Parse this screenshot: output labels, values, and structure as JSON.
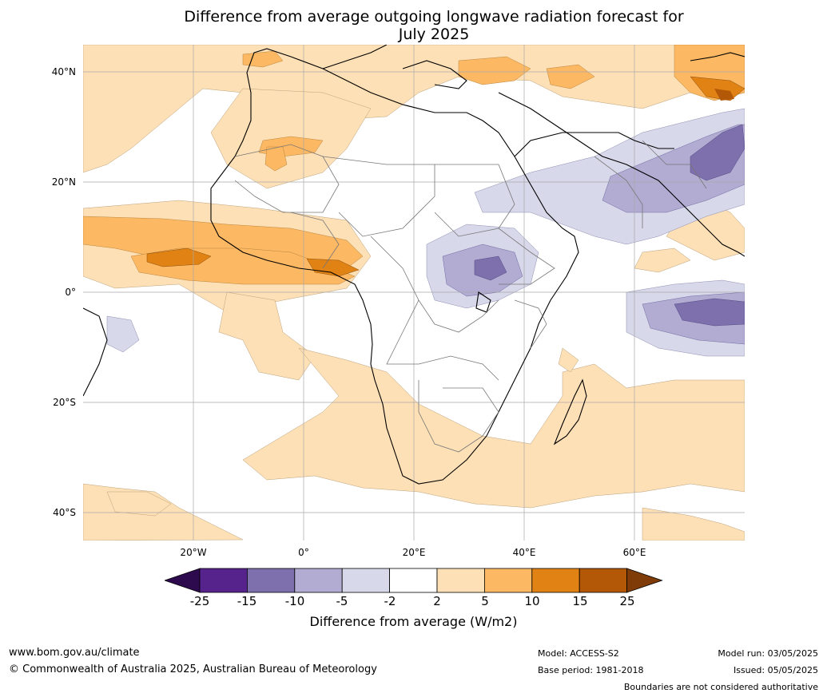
{
  "title_line1": "Difference from average outgoing longwave radiation forecast for",
  "title_line2": "July 2025",
  "lat_labels": [
    "40°N",
    "20°N",
    "0°",
    "20°S",
    "40°S"
  ],
  "lon_labels": [
    "20°W",
    "0°",
    "20°E",
    "40°E",
    "60°E"
  ],
  "legend": {
    "title": "Difference from average (W/m2)",
    "ticks": [
      "-25",
      "-15",
      "-10",
      "-5",
      "-2",
      "2",
      "5",
      "10",
      "15",
      "25"
    ],
    "colors": {
      "below_min": "#2d0a4e",
      "bins": [
        "#56228b",
        "#7e6fad",
        "#b2abd2",
        "#d8d8eb",
        "#ffffff",
        "#fee0b6",
        "#fdb863",
        "#e08214",
        "#b35806"
      ],
      "above_max": "#7f3b08"
    }
  },
  "footer": {
    "website": "www.bom.gov.au/climate",
    "copyright": "© Commonwealth of Australia 2025, Australian Bureau of Meteorology",
    "model": "Model: ACCESS-S2",
    "base_period": "Base period: 1981-2018",
    "model_run": "Model run: 03/05/2025",
    "issued": "Issued: 05/05/2025",
    "boundaries_note": "Boundaries are not considered authoritative"
  }
}
